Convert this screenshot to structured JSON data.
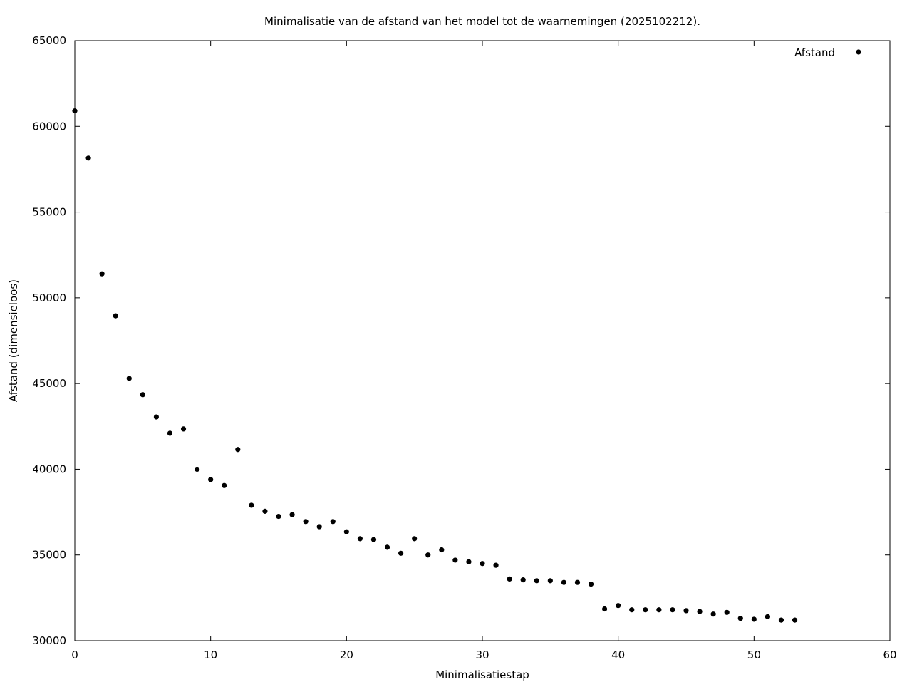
{
  "chart_data": {
    "type": "scatter",
    "title": "Minimalisatie van de afstand van het model tot de waarnemingen (2025102212).",
    "xlabel": "Minimalisatiestap",
    "ylabel": "Afstand (dimensieloos)",
    "xlim": [
      0,
      60
    ],
    "ylim": [
      30000,
      65000
    ],
    "xticks": [
      0,
      10,
      20,
      30,
      40,
      50,
      60
    ],
    "yticks": [
      30000,
      35000,
      40000,
      45000,
      50000,
      55000,
      60000,
      65000
    ],
    "grid": false,
    "legend_position": "top-right",
    "marker_color": "#000000",
    "series": [
      {
        "name": "Afstand",
        "x": [
          0,
          1,
          2,
          3,
          4,
          5,
          6,
          7,
          8,
          9,
          10,
          11,
          12,
          13,
          14,
          15,
          16,
          17,
          18,
          19,
          20,
          21,
          22,
          23,
          24,
          25,
          26,
          27,
          28,
          29,
          30,
          31,
          32,
          33,
          34,
          35,
          36,
          37,
          38,
          39,
          40,
          41,
          42,
          43,
          44,
          45,
          46,
          47,
          48,
          49,
          50,
          51,
          52,
          53
        ],
        "y": [
          60900,
          58150,
          51400,
          48950,
          45300,
          44350,
          43050,
          42100,
          42350,
          40000,
          39400,
          39050,
          41150,
          37900,
          37550,
          37250,
          37350,
          36950,
          36650,
          36950,
          36350,
          35950,
          35900,
          35450,
          35100,
          35950,
          35000,
          35300,
          34700,
          34600,
          34500,
          34400,
          33600,
          33550,
          33500,
          33500,
          33400,
          33400,
          33300,
          31850,
          32050,
          31800,
          31800,
          31800,
          31800,
          31750,
          31700,
          31550,
          31650,
          31300,
          31250,
          31400,
          31200,
          31200
        ]
      }
    ]
  }
}
